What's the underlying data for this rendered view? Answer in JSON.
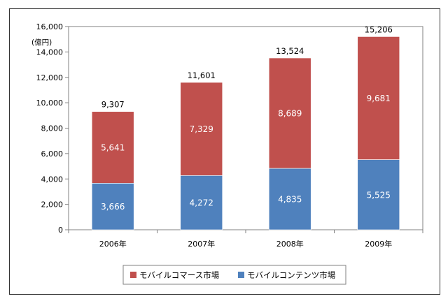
{
  "chart_data": {
    "type": "bar",
    "stacked": true,
    "unit_label": "(億円)",
    "categories": [
      "2006年",
      "2007年",
      "2008年",
      "2009年"
    ],
    "series": [
      {
        "name": "モバイルコンテンツ市場",
        "values": [
          3666,
          4272,
          4835,
          5525
        ],
        "labels": [
          "3,666",
          "4,272",
          "4,835",
          "5,525"
        ],
        "color": "#4f81bd"
      },
      {
        "name": "モバイルコマース市場",
        "values": [
          5641,
          7329,
          8689,
          9681
        ],
        "labels": [
          "5,641",
          "7,329",
          "8,689",
          "9,681"
        ],
        "color": "#c0504d"
      }
    ],
    "totals": [
      9307,
      11601,
      13524,
      15206
    ],
    "total_labels": [
      "9,307",
      "11,601",
      "13,524",
      "15,206"
    ],
    "ylim": [
      0,
      16000
    ],
    "yticks": [
      0,
      2000,
      4000,
      6000,
      8000,
      10000,
      12000,
      14000,
      16000
    ],
    "ytick_labels": [
      "0",
      "2,000",
      "4,000",
      "6,000",
      "8,000",
      "10,000",
      "12,000",
      "14,000",
      "16,000"
    ],
    "grid": false,
    "legend": {
      "placement": "bottom",
      "items": [
        {
          "name": "モバイルコマース市場",
          "color": "#c0504d"
        },
        {
          "name": "モバイルコンテンツ市場",
          "color": "#4f81bd"
        }
      ]
    }
  }
}
